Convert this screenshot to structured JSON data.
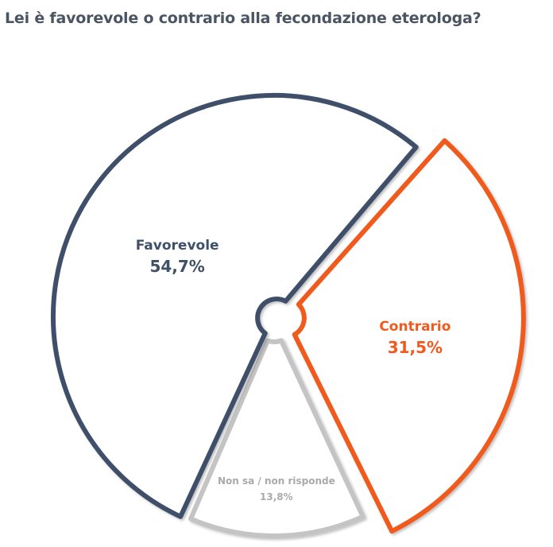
{
  "chart_data": {
    "type": "pie",
    "title": "Lei è favorevole o contrario alla fecondazione eterologa?",
    "slices": [
      {
        "label": "Contrario",
        "value": 31.5,
        "display": "31,5%",
        "color": "#f05a1e"
      },
      {
        "label": "Non sa / non risponde",
        "value": 13.8,
        "display": "13,8%",
        "color": "#c4c4c4"
      },
      {
        "label": "Favorevole",
        "value": 54.7,
        "display": "54,7%",
        "color": "#3f5069"
      }
    ]
  }
}
